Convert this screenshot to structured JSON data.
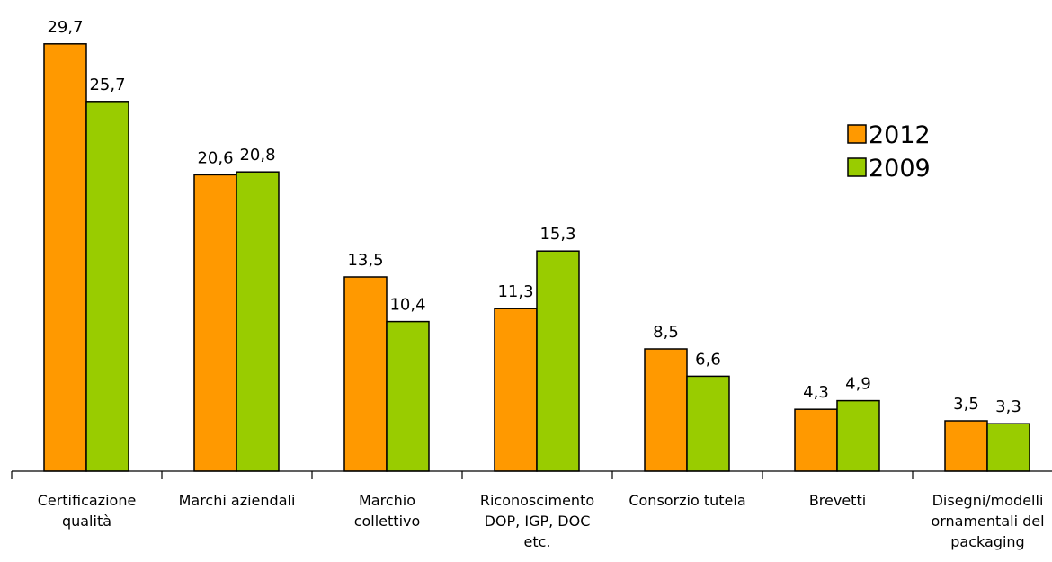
{
  "chart_data": {
    "type": "bar",
    "categories": [
      [
        "Certificazione",
        "qualità"
      ],
      [
        "Marchi aziendali"
      ],
      [
        "Marchio",
        "collettivo"
      ],
      [
        "Riconoscimento",
        "DOP, IGP, DOC",
        "etc."
      ],
      [
        "Consorzio tutela"
      ],
      [
        "Brevetti"
      ],
      [
        "Disegni/modelli",
        "ornamentali del",
        "packaging"
      ]
    ],
    "series": [
      {
        "name": "2012",
        "color": "#FF9900",
        "values": [
          29.7,
          20.6,
          13.5,
          11.3,
          8.5,
          4.3,
          3.5
        ],
        "labels": [
          "29,7",
          "20,6",
          "13,5",
          "11,3",
          "8,5",
          "4,3",
          "3,5"
        ]
      },
      {
        "name": "2009",
        "color": "#99CC00",
        "values": [
          25.7,
          20.8,
          10.4,
          15.3,
          6.6,
          4.9,
          3.3
        ],
        "labels": [
          "25,7",
          "20,8",
          "10,4",
          "15,3",
          "6,6",
          "4,9",
          "3,3"
        ]
      }
    ],
    "ylim": [
      0,
      30
    ],
    "grid": false,
    "legend": "right"
  }
}
